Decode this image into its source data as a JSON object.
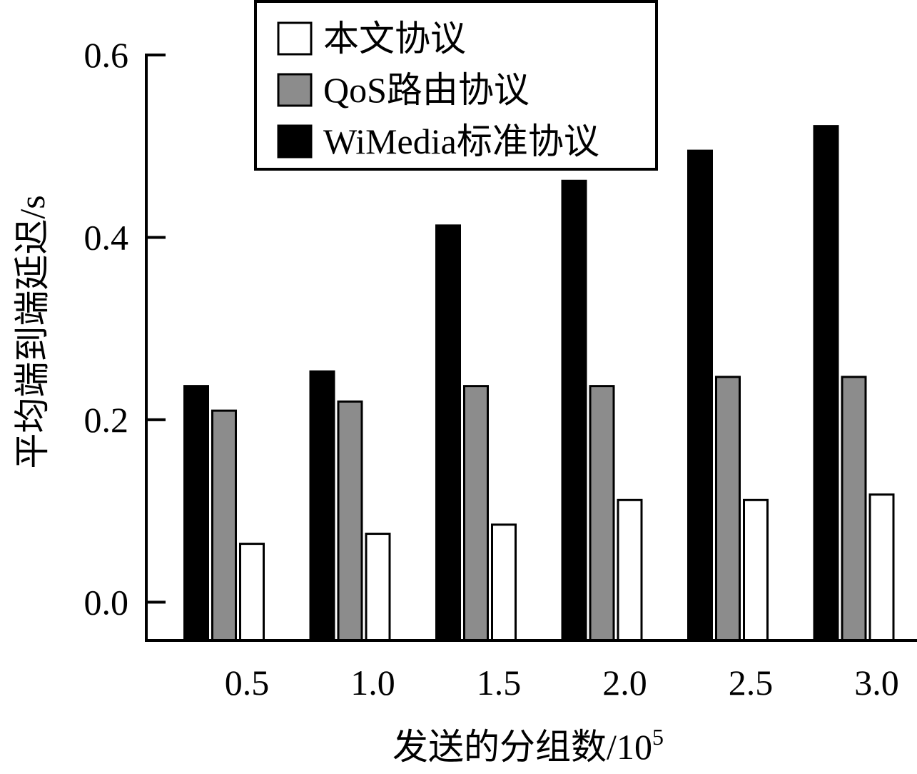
{
  "chart_data": {
    "type": "bar",
    "xlabel": "发送的分组数/10",
    "xlabel_sup": "5",
    "ylabel": "平均端到端延迟/s",
    "categories": [
      "0.5",
      "1.0",
      "1.5",
      "2.0",
      "2.5",
      "3.0"
    ],
    "yticks": [
      "0.0",
      "0.2",
      "0.4",
      "0.6"
    ],
    "ylim": [
      -0.042,
      0.6
    ],
    "grid": false,
    "legend_position": "top-left",
    "series": [
      {
        "name": "WiMedia标准协议",
        "color": "#000000",
        "values": [
          0.237,
          0.253,
          0.413,
          0.462,
          0.495,
          0.522
        ]
      },
      {
        "name": "QoS路由协议",
        "color": "#8c8c8c",
        "values": [
          0.21,
          0.22,
          0.237,
          0.237,
          0.247,
          0.247
        ]
      },
      {
        "name": "本文协议",
        "color": "#ffffff",
        "values": [
          0.064,
          0.075,
          0.085,
          0.112,
          0.112,
          0.118
        ]
      }
    ],
    "legend_order": [
      2,
      1,
      0
    ]
  }
}
